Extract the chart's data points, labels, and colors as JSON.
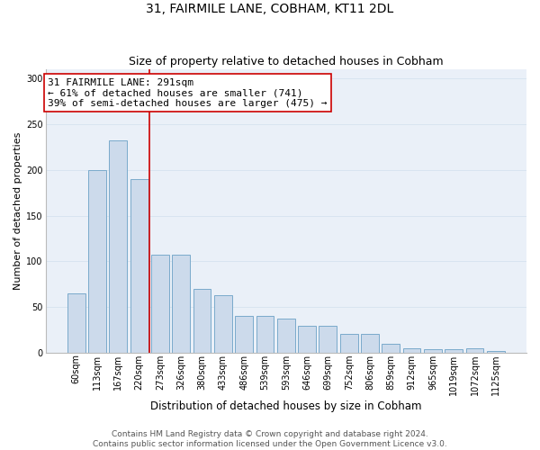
{
  "title": "31, FAIRMILE LANE, COBHAM, KT11 2DL",
  "subtitle": "Size of property relative to detached houses in Cobham",
  "xlabel": "Distribution of detached houses by size in Cobham",
  "ylabel": "Number of detached properties",
  "categories": [
    "60sqm",
    "113sqm",
    "167sqm",
    "220sqm",
    "273sqm",
    "326sqm",
    "380sqm",
    "433sqm",
    "486sqm",
    "539sqm",
    "593sqm",
    "646sqm",
    "699sqm",
    "752sqm",
    "806sqm",
    "859sqm",
    "912sqm",
    "965sqm",
    "1019sqm",
    "1072sqm",
    "1125sqm"
  ],
  "values": [
    65,
    200,
    232,
    190,
    107,
    107,
    70,
    63,
    40,
    40,
    37,
    30,
    30,
    21,
    21,
    10,
    5,
    4,
    4,
    5,
    2
  ],
  "bar_color": "#ccdaeb",
  "bar_edge_color": "#7aaacb",
  "bar_linewidth": 0.7,
  "vline_index": 4,
  "vline_color": "#cc0000",
  "annotation_text": "31 FAIRMILE LANE: 291sqm\n← 61% of detached houses are smaller (741)\n39% of semi-detached houses are larger (475) →",
  "annotation_box_color": "#ffffff",
  "annotation_box_edgecolor": "#cc0000",
  "annotation_fontsize": 8,
  "ylim": [
    0,
    310
  ],
  "yticks": [
    0,
    50,
    100,
    150,
    200,
    250,
    300
  ],
  "grid_color": "#d8e4f0",
  "bg_color": "#eaf0f8",
  "footer": "Contains HM Land Registry data © Crown copyright and database right 2024.\nContains public sector information licensed under the Open Government Licence v3.0.",
  "title_fontsize": 10,
  "subtitle_fontsize": 9,
  "xlabel_fontsize": 8.5,
  "ylabel_fontsize": 8,
  "tick_fontsize": 7,
  "footer_fontsize": 6.5
}
